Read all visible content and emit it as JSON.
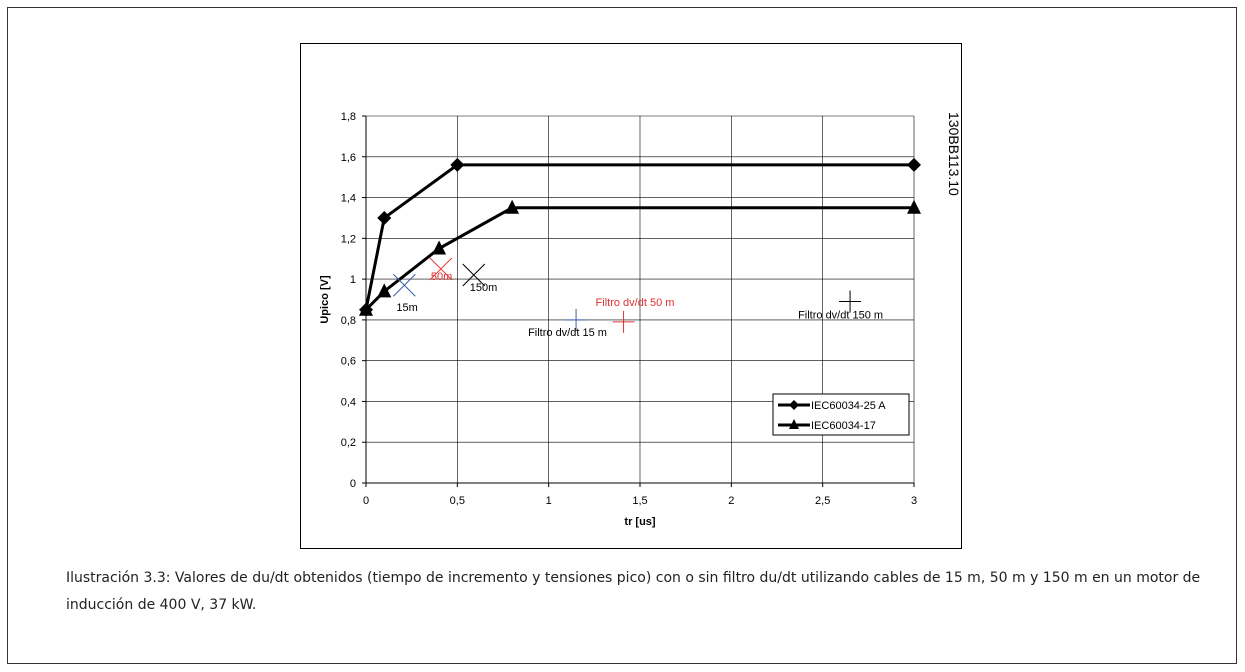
{
  "figure_code": "130BB113.10",
  "caption": "Ilustración 3.3: Valores de du/dt obtenidos (tiempo de incremento y tensiones pico) con o sin filtro du/dt utilizando cables de 15 m, 50 m y 150 m en un motor de inducción de 400 V, 37 kW.",
  "chart_data": {
    "type": "line",
    "xlabel": "tr [us]",
    "ylabel": "Upico [V]",
    "xlim": [
      0,
      3
    ],
    "ylim": [
      0,
      1.8
    ],
    "x_ticks": [
      0,
      0.5,
      1,
      1.5,
      2,
      2.5,
      3
    ],
    "x_tick_labels": [
      "0",
      "0,5",
      "1",
      "1,5",
      "2",
      "2,5",
      "3"
    ],
    "y_ticks": [
      0,
      0.2,
      0.4,
      0.6,
      0.8,
      1,
      1.2,
      1.4,
      1.6,
      1.8
    ],
    "y_tick_labels": [
      "0",
      "0,2",
      "0,4",
      "0,6",
      "0,8",
      "1",
      "1,2",
      "1,4",
      "1,6",
      "1,8"
    ],
    "grid": true,
    "legend_position": "bottom-right",
    "series": [
      {
        "name": "IEC60034-25 A",
        "marker": "diamond",
        "color": "#000000",
        "points": [
          [
            0,
            0.85
          ],
          [
            0.1,
            1.3
          ],
          [
            0.5,
            1.56
          ],
          [
            3,
            1.56
          ]
        ]
      },
      {
        "name": "IEC60034-17",
        "marker": "triangle",
        "color": "#000000",
        "points": [
          [
            0,
            0.85
          ],
          [
            0.1,
            0.94
          ],
          [
            0.4,
            1.15
          ],
          [
            0.8,
            1.35
          ],
          [
            3,
            1.35
          ]
        ]
      }
    ],
    "annotations": [
      {
        "marker": "x",
        "x": 0.21,
        "y": 0.97,
        "color": "#3a5fa8",
        "label": "15m",
        "label_color": "#000000"
      },
      {
        "marker": "x",
        "x": 0.41,
        "y": 1.05,
        "color": "#e03030",
        "label": "50m",
        "label_color": "#e03030"
      },
      {
        "marker": "x",
        "x": 0.59,
        "y": 1.02,
        "color": "#000000",
        "label": "150m",
        "label_color": "#000000"
      },
      {
        "marker": "plus",
        "x": 1.15,
        "y": 0.8,
        "color": "#3a5fa8",
        "label": "Filtro dv/dt 15 m",
        "label_color": "#000000"
      },
      {
        "marker": "plus",
        "x": 1.41,
        "y": 0.79,
        "color": "#e03030",
        "label": "Filtro dv/dt 50 m",
        "label_color": "#e03030"
      },
      {
        "marker": "plus",
        "x": 2.65,
        "y": 0.89,
        "color": "#000000",
        "label": "Filtro dv/dt 150 m",
        "label_color": "#000000"
      }
    ]
  }
}
